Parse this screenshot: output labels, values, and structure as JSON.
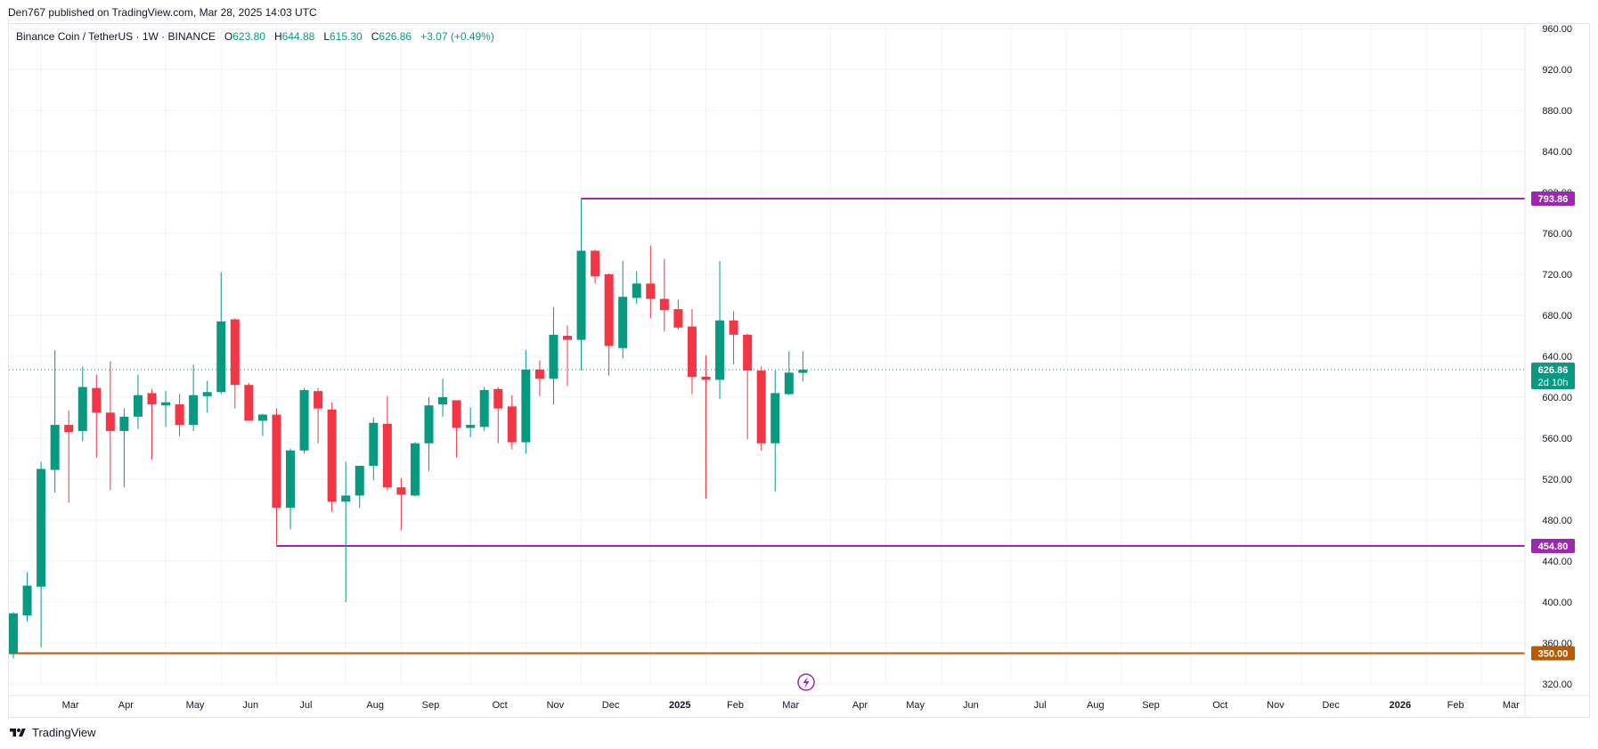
{
  "header": {
    "published": "Den767 published on TradingView.com, Mar 28, 2025 14:03 UTC"
  },
  "legend": {
    "symbol": "Binance Coin / TetherUS · 1W · BINANCE",
    "open_label": "O",
    "open": "623.80",
    "high_label": "H",
    "high": "644.88",
    "low_label": "L",
    "low": "615.30",
    "close_label": "C",
    "close": "626.86",
    "change": "+3.07 (+0.49%)"
  },
  "footer": {
    "brand": "TradingView"
  },
  "colors": {
    "up": "#089981",
    "down": "#f23645",
    "level": "#9c27b0",
    "support": "#b85a00",
    "grid": "#f0f3fa",
    "text": "#131722"
  },
  "chart_data": {
    "type": "candlestick",
    "ylim": [
      300,
      980
    ],
    "y_ticks": [
      320,
      360,
      400,
      440,
      480,
      520,
      560,
      600,
      640,
      680,
      720,
      760,
      800,
      840,
      880,
      920,
      960
    ],
    "x_ticks": [
      {
        "label": "Mar",
        "week": 2,
        "bold": false
      },
      {
        "label": "Apr",
        "week": 6,
        "bold": false
      },
      {
        "label": "May",
        "week": 11,
        "bold": false
      },
      {
        "label": "Jun",
        "week": 15,
        "bold": false
      },
      {
        "label": "Jul",
        "week": 19,
        "bold": false
      },
      {
        "label": "Aug",
        "week": 24,
        "bold": false
      },
      {
        "label": "Sep",
        "week": 28,
        "bold": false
      },
      {
        "label": "Oct",
        "week": 33,
        "bold": false
      },
      {
        "label": "Nov",
        "week": 37,
        "bold": false
      },
      {
        "label": "Dec",
        "week": 41,
        "bold": false
      },
      {
        "label": "2025",
        "week": 46,
        "bold": true
      },
      {
        "label": "Feb",
        "week": 50,
        "bold": false
      },
      {
        "label": "Mar",
        "week": 54,
        "bold": false
      },
      {
        "label": "Apr",
        "week": 59,
        "bold": false
      },
      {
        "label": "May",
        "week": 63,
        "bold": false
      },
      {
        "label": "Jun",
        "week": 67,
        "bold": false
      },
      {
        "label": "Jul",
        "week": 72,
        "bold": false
      },
      {
        "label": "Aug",
        "week": 76,
        "bold": false
      },
      {
        "label": "Sep",
        "week": 80,
        "bold": false
      },
      {
        "label": "Oct",
        "week": 85,
        "bold": false
      },
      {
        "label": "Nov",
        "week": 89,
        "bold": false
      },
      {
        "label": "Dec",
        "week": 93,
        "bold": false
      },
      {
        "label": "2026",
        "week": 98,
        "bold": true
      },
      {
        "label": "Feb",
        "week": 102,
        "bold": false
      },
      {
        "label": "Mar",
        "week": 106,
        "bold": false
      }
    ],
    "x_range_weeks": [
      -0.5,
      114
    ],
    "candles": [
      {
        "o": 350,
        "h": 390,
        "l": 345,
        "c": 389
      },
      {
        "o": 387,
        "h": 429,
        "l": 381,
        "c": 416
      },
      {
        "o": 415,
        "h": 537,
        "l": 356,
        "c": 530
      },
      {
        "o": 529,
        "h": 646,
        "l": 507,
        "c": 573
      },
      {
        "o": 573,
        "h": 587,
        "l": 497,
        "c": 566
      },
      {
        "o": 567,
        "h": 630,
        "l": 557,
        "c": 610
      },
      {
        "o": 609,
        "h": 622,
        "l": 541,
        "c": 585
      },
      {
        "o": 585,
        "h": 635,
        "l": 509,
        "c": 567
      },
      {
        "o": 567,
        "h": 589,
        "l": 512,
        "c": 581
      },
      {
        "o": 581,
        "h": 622,
        "l": 569,
        "c": 602
      },
      {
        "o": 604,
        "h": 608,
        "l": 539,
        "c": 593
      },
      {
        "o": 592,
        "h": 606,
        "l": 571,
        "c": 595
      },
      {
        "o": 593,
        "h": 603,
        "l": 562,
        "c": 573
      },
      {
        "o": 573,
        "h": 632,
        "l": 567,
        "c": 602
      },
      {
        "o": 601,
        "h": 616,
        "l": 585,
        "c": 605
      },
      {
        "o": 605,
        "h": 722,
        "l": 603,
        "c": 674
      },
      {
        "o": 676,
        "h": 677,
        "l": 589,
        "c": 612
      },
      {
        "o": 612,
        "h": 614,
        "l": 577,
        "c": 577
      },
      {
        "o": 577,
        "h": 584,
        "l": 562,
        "c": 583
      },
      {
        "o": 583,
        "h": 589,
        "l": 455,
        "c": 492
      },
      {
        "o": 492,
        "h": 550,
        "l": 471,
        "c": 548
      },
      {
        "o": 548,
        "h": 609,
        "l": 545,
        "c": 607
      },
      {
        "o": 606,
        "h": 609,
        "l": 555,
        "c": 589
      },
      {
        "o": 588,
        "h": 595,
        "l": 488,
        "c": 498
      },
      {
        "o": 498,
        "h": 537,
        "l": 400,
        "c": 504
      },
      {
        "o": 504,
        "h": 531,
        "l": 492,
        "c": 533
      },
      {
        "o": 533,
        "h": 580,
        "l": 519,
        "c": 575
      },
      {
        "o": 574,
        "h": 601,
        "l": 509,
        "c": 512
      },
      {
        "o": 512,
        "h": 521,
        "l": 470,
        "c": 505
      },
      {
        "o": 504,
        "h": 556,
        "l": 503,
        "c": 555
      },
      {
        "o": 555,
        "h": 600,
        "l": 528,
        "c": 592
      },
      {
        "o": 593,
        "h": 618,
        "l": 581,
        "c": 600
      },
      {
        "o": 597,
        "h": 597,
        "l": 541,
        "c": 570
      },
      {
        "o": 570,
        "h": 590,
        "l": 561,
        "c": 573
      },
      {
        "o": 571,
        "h": 610,
        "l": 567,
        "c": 607
      },
      {
        "o": 608,
        "h": 610,
        "l": 555,
        "c": 589
      },
      {
        "o": 591,
        "h": 602,
        "l": 549,
        "c": 556
      },
      {
        "o": 556,
        "h": 646,
        "l": 545,
        "c": 627
      },
      {
        "o": 627,
        "h": 636,
        "l": 601,
        "c": 618
      },
      {
        "o": 618,
        "h": 688,
        "l": 593,
        "c": 661
      },
      {
        "o": 660,
        "h": 670,
        "l": 611,
        "c": 656
      },
      {
        "o": 656,
        "h": 794,
        "l": 626,
        "c": 743
      },
      {
        "o": 743,
        "h": 744,
        "l": 711,
        "c": 718
      },
      {
        "o": 720,
        "h": 721,
        "l": 621,
        "c": 650
      },
      {
        "o": 648,
        "h": 733,
        "l": 638,
        "c": 698
      },
      {
        "o": 697,
        "h": 723,
        "l": 691,
        "c": 711
      },
      {
        "o": 711,
        "h": 748,
        "l": 677,
        "c": 696
      },
      {
        "o": 696,
        "h": 735,
        "l": 664,
        "c": 685
      },
      {
        "o": 686,
        "h": 695,
        "l": 666,
        "c": 668
      },
      {
        "o": 669,
        "h": 686,
        "l": 603,
        "c": 620
      },
      {
        "o": 620,
        "h": 641,
        "l": 501,
        "c": 617
      },
      {
        "o": 617,
        "h": 733,
        "l": 598,
        "c": 675
      },
      {
        "o": 675,
        "h": 684,
        "l": 632,
        "c": 661
      },
      {
        "o": 661,
        "h": 662,
        "l": 559,
        "c": 626
      },
      {
        "o": 626,
        "h": 630,
        "l": 548,
        "c": 555
      },
      {
        "o": 555,
        "h": 626,
        "l": 508,
        "c": 604
      },
      {
        "o": 603,
        "h": 645,
        "l": 602,
        "c": 624
      },
      {
        "o": 623.8,
        "h": 644.88,
        "l": 615.3,
        "c": 626.86
      }
    ],
    "levels": [
      {
        "value": 793.86,
        "label": "793.86",
        "start_week": 41,
        "color": "#9c27b0"
      },
      {
        "value": 454.8,
        "label": "454.80",
        "start_week": 19,
        "color": "#9c27b0"
      },
      {
        "value": 350.0,
        "label": "350.00",
        "start_week": -0.5,
        "color": "#b85a00"
      }
    ],
    "last_price": {
      "value": 626.86,
      "label": "626.86",
      "countdown": "2d 10h",
      "color": "#089981"
    }
  }
}
